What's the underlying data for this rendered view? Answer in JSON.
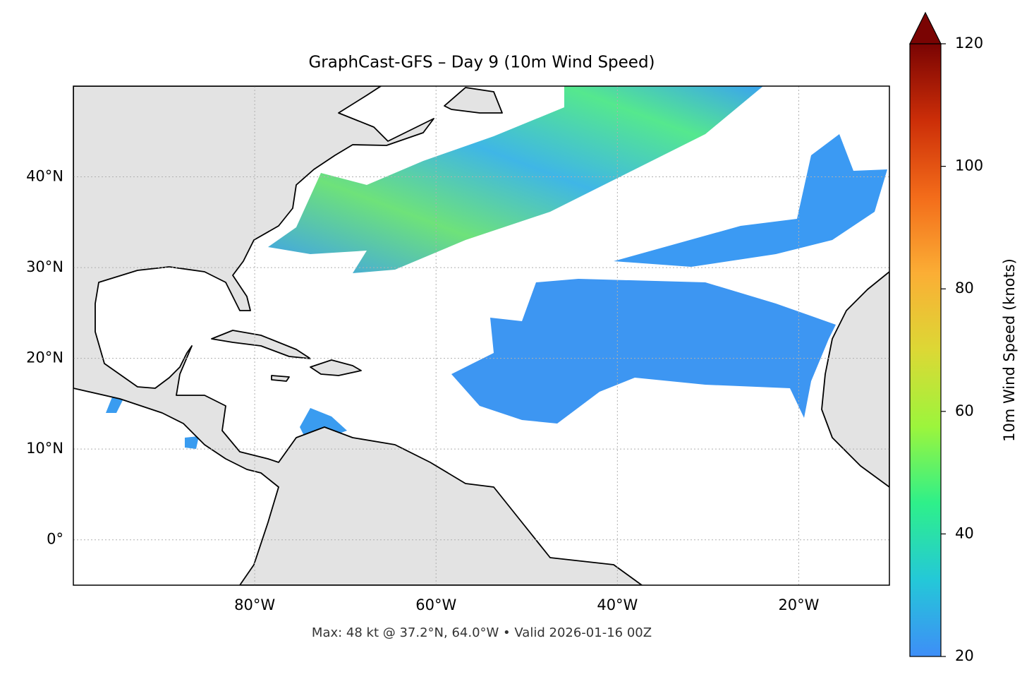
{
  "chart_data": {
    "type": "map",
    "title": "GraphCast-GFS – Day 9 (10m Wind Speed)",
    "footnote": "Max: 48 kt @ 37.2°N, 64.0°W • Valid 2026-01-16 00Z",
    "xlim": [
      -100,
      -10
    ],
    "ylim": [
      -5,
      50
    ],
    "xticks": [
      {
        "value": -80,
        "label": "80°W"
      },
      {
        "value": -60,
        "label": "60°W"
      },
      {
        "value": -40,
        "label": "40°W"
      },
      {
        "value": -20,
        "label": "20°W"
      }
    ],
    "yticks": [
      {
        "value": 0,
        "label": "0°"
      },
      {
        "value": 10,
        "label": "10°N"
      },
      {
        "value": 20,
        "label": "20°N"
      },
      {
        "value": 30,
        "label": "30°N"
      },
      {
        "value": 40,
        "label": "40°N"
      }
    ],
    "grid": true,
    "colorbar": {
      "label": "10m Wind Speed (knots)",
      "clim": [
        20,
        120
      ],
      "ticks": [
        20,
        40,
        60,
        80,
        100,
        120
      ],
      "extend": "max",
      "colors": [
        "#3e8ef7",
        "#24c8d8",
        "#2ef08a",
        "#9cf53c",
        "#dcd835",
        "#fbae35",
        "#f36c1a",
        "#cc2e08",
        "#7a0403"
      ]
    }
  }
}
